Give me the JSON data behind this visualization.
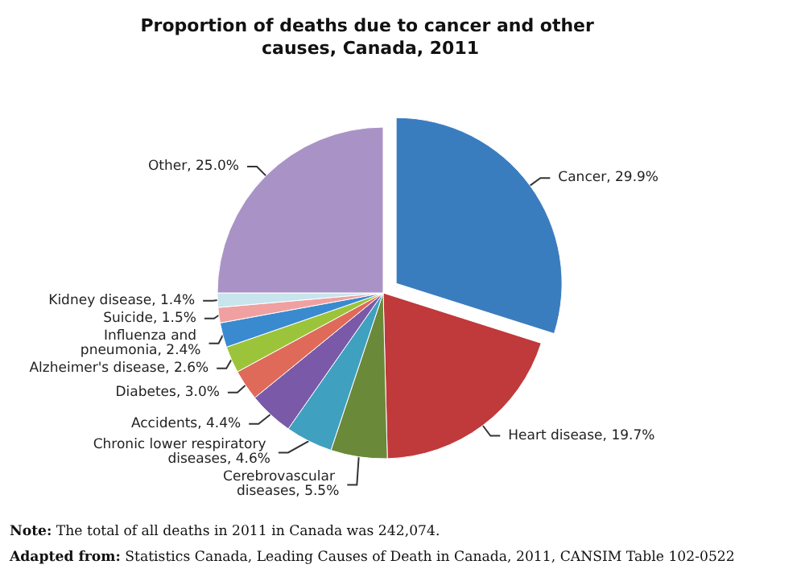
{
  "chart_data": {
    "type": "pie",
    "title": "Proportion of deaths due to cancer and other causes, Canada, 2011",
    "categories": [
      "Cancer",
      "Heart disease",
      "Cerebrovascular diseases",
      "Chronic lower respiratory diseases",
      "Accidents",
      "Diabetes",
      "Alzheimer's disease",
      "Influenza and pneumonia",
      "Suicide",
      "Kidney disease",
      "Other"
    ],
    "values": [
      29.9,
      19.7,
      5.5,
      4.6,
      4.4,
      3.0,
      2.6,
      2.4,
      1.5,
      1.4,
      25.0
    ],
    "value_labels": [
      "29.9%",
      "19.7%",
      "5.5%",
      "4.6%",
      "4.4%",
      "3.0%",
      "2.6%",
      "2.4%",
      "1.5%",
      "1.4%",
      "25.0%"
    ],
    "colors": [
      "#3a7dbf",
      "#c0393b",
      "#6a8a3a",
      "#3fa0c0",
      "#7a5aa8",
      "#e06a5a",
      "#9cc43a",
      "#3a8ad0",
      "#f0a0a0",
      "#c8e4ec",
      "#a993c6"
    ],
    "annotations": [
      "Note: The total of all deaths in 2011 in Canada was 242,074.",
      "Adapted from: Statistics Canada, Leading Causes of Death in Canada, 2011, CANSIM Table 102-0522"
    ]
  }
}
